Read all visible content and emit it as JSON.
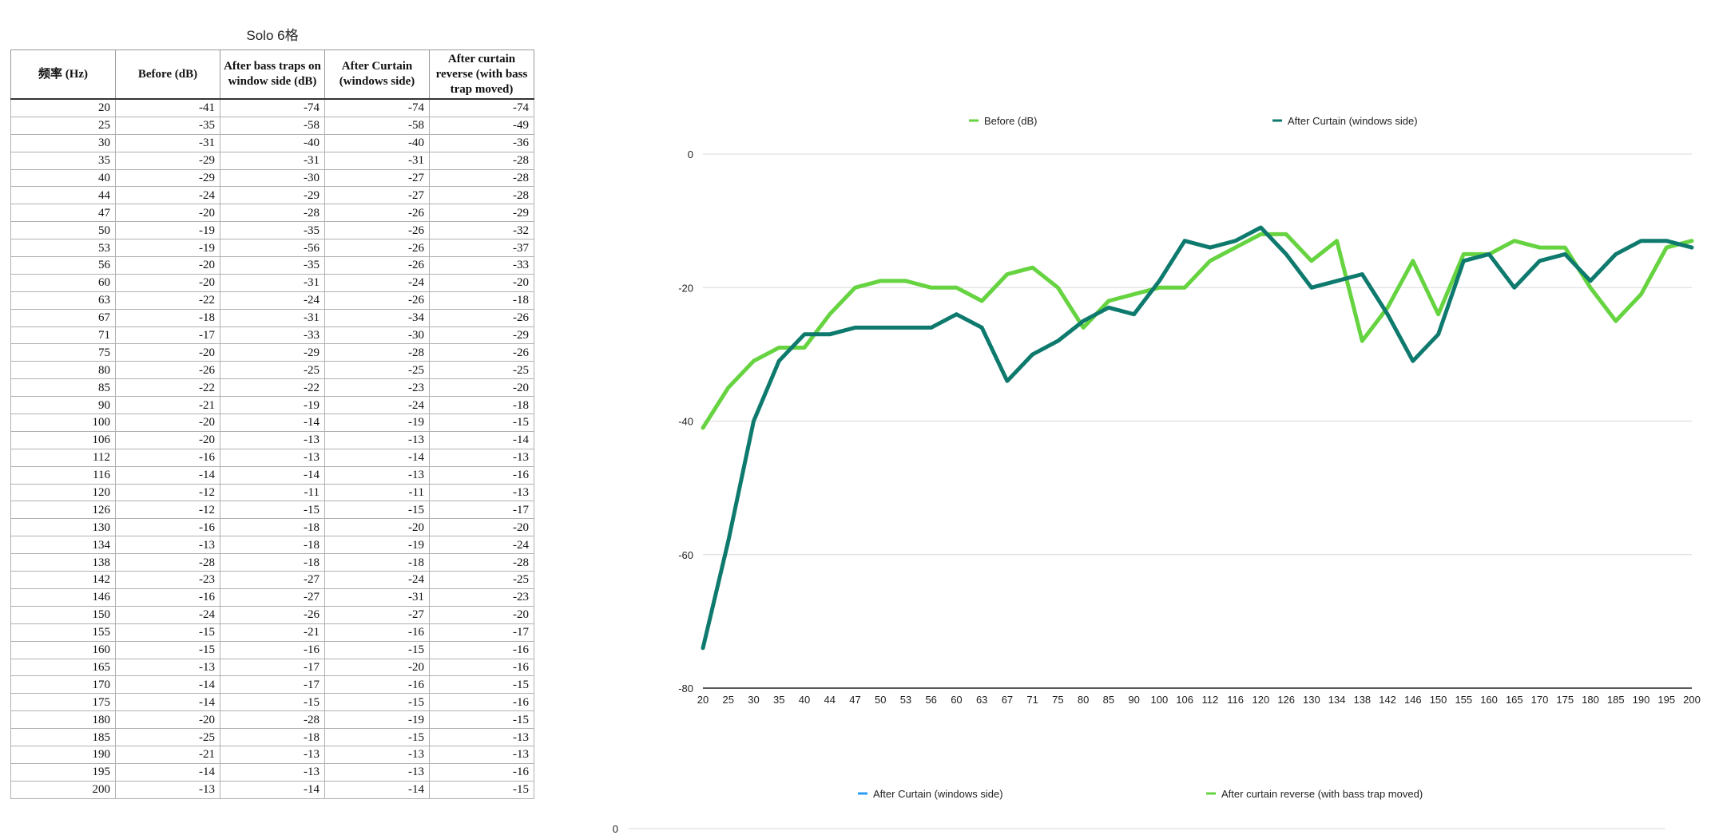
{
  "table": {
    "title": "Solo 6格",
    "headers": [
      "频率 (Hz)",
      "Before (dB)",
      "After bass traps on window side (dB)",
      "After Curtain (windows side)",
      "After curtain reverse (with bass trap moved)"
    ],
    "rows": [
      [
        "20",
        "-41",
        "-74",
        "-74",
        "-74"
      ],
      [
        "25",
        "-35",
        "-58",
        "-58",
        "-49"
      ],
      [
        "30",
        "-31",
        "-40",
        "-40",
        "-36"
      ],
      [
        "35",
        "-29",
        "-31",
        "-31",
        "-28"
      ],
      [
        "40",
        "-29",
        "-30",
        "-27",
        "-28"
      ],
      [
        "44",
        "-24",
        "-29",
        "-27",
        "-28"
      ],
      [
        "47",
        "-20",
        "-28",
        "-26",
        "-29"
      ],
      [
        "50",
        "-19",
        "-35",
        "-26",
        "-32"
      ],
      [
        "53",
        "-19",
        "-56",
        "-26",
        "-37"
      ],
      [
        "56",
        "-20",
        "-35",
        "-26",
        "-33"
      ],
      [
        "60",
        "-20",
        "-31",
        "-24",
        "-20"
      ],
      [
        "63",
        "-22",
        "-24",
        "-26",
        "-18"
      ],
      [
        "67",
        "-18",
        "-31",
        "-34",
        "-26"
      ],
      [
        "71",
        "-17",
        "-33",
        "-30",
        "-29"
      ],
      [
        "75",
        "-20",
        "-29",
        "-28",
        "-26"
      ],
      [
        "80",
        "-26",
        "-25",
        "-25",
        "-25"
      ],
      [
        "85",
        "-22",
        "-22",
        "-23",
        "-20"
      ],
      [
        "90",
        "-21",
        "-19",
        "-24",
        "-18"
      ],
      [
        "100",
        "-20",
        "-14",
        "-19",
        "-15"
      ],
      [
        "106",
        "-20",
        "-13",
        "-13",
        "-14"
      ],
      [
        "112",
        "-16",
        "-13",
        "-14",
        "-13"
      ],
      [
        "116",
        "-14",
        "-14",
        "-13",
        "-16"
      ],
      [
        "120",
        "-12",
        "-11",
        "-11",
        "-13"
      ],
      [
        "126",
        "-12",
        "-15",
        "-15",
        "-17"
      ],
      [
        "130",
        "-16",
        "-18",
        "-20",
        "-20"
      ],
      [
        "134",
        "-13",
        "-18",
        "-19",
        "-24"
      ],
      [
        "138",
        "-28",
        "-18",
        "-18",
        "-28"
      ],
      [
        "142",
        "-23",
        "-27",
        "-24",
        "-25"
      ],
      [
        "146",
        "-16",
        "-27",
        "-31",
        "-23"
      ],
      [
        "150",
        "-24",
        "-26",
        "-27",
        "-20"
      ],
      [
        "155",
        "-15",
        "-21",
        "-16",
        "-17"
      ],
      [
        "160",
        "-15",
        "-16",
        "-15",
        "-16"
      ],
      [
        "165",
        "-13",
        "-17",
        "-20",
        "-16"
      ],
      [
        "170",
        "-14",
        "-17",
        "-16",
        "-15"
      ],
      [
        "175",
        "-14",
        "-15",
        "-15",
        "-16"
      ],
      [
        "180",
        "-20",
        "-28",
        "-19",
        "-15"
      ],
      [
        "185",
        "-25",
        "-18",
        "-15",
        "-13"
      ],
      [
        "190",
        "-21",
        "-13",
        "-13",
        "-13"
      ],
      [
        "195",
        "-14",
        "-13",
        "-13",
        "-16"
      ],
      [
        "200",
        "-13",
        "-14",
        "-14",
        "-15"
      ]
    ]
  },
  "chart_data": [
    {
      "type": "line",
      "title": "",
      "xlabel": "",
      "ylabel": "",
      "categories": [
        "20",
        "25",
        "30",
        "35",
        "40",
        "44",
        "47",
        "50",
        "53",
        "56",
        "60",
        "63",
        "67",
        "71",
        "75",
        "80",
        "85",
        "90",
        "100",
        "106",
        "112",
        "116",
        "120",
        "126",
        "130",
        "134",
        "138",
        "142",
        "146",
        "150",
        "155",
        "160",
        "165",
        "170",
        "175",
        "180",
        "185",
        "190",
        "195",
        "200"
      ],
      "ylim": [
        -80,
        0
      ],
      "yticks": [
        "0",
        "-20",
        "-40",
        "-60",
        "-80"
      ],
      "grid": true,
      "legend": "top-center",
      "series": [
        {
          "name": "Before (dB)",
          "color": "#66d340",
          "values": [
            -41,
            -35,
            -31,
            -29,
            -29,
            -24,
            -20,
            -19,
            -19,
            -20,
            -20,
            -22,
            -18,
            -17,
            -20,
            -26,
            -22,
            -21,
            -20,
            -20,
            -16,
            -14,
            -12,
            -12,
            -16,
            -13,
            -28,
            -23,
            -16,
            -24,
            -15,
            -15,
            -13,
            -14,
            -14,
            -20,
            -25,
            -21,
            -14,
            -13
          ]
        },
        {
          "name": "After Curtain (windows side)",
          "color": "#0e7a6e",
          "values": [
            -74,
            -58,
            -40,
            -31,
            -27,
            -27,
            -26,
            -26,
            -26,
            -26,
            -24,
            -26,
            -34,
            -30,
            -28,
            -25,
            -23,
            -24,
            -19,
            -13,
            -14,
            -13,
            -11,
            -15,
            -20,
            -19,
            -18,
            -24,
            -31,
            -27,
            -16,
            -15,
            -20,
            -16,
            -15,
            -19,
            -15,
            -13,
            -13,
            -14
          ]
        }
      ]
    },
    {
      "type": "line",
      "title": "",
      "yticks": [
        "0"
      ],
      "legend": "top-center",
      "series": [
        {
          "name": "After Curtain (windows side)",
          "color": "#2a9df4",
          "values": []
        },
        {
          "name": "After curtain reverse (with bass trap moved)",
          "color": "#66d340",
          "values": []
        }
      ]
    }
  ]
}
